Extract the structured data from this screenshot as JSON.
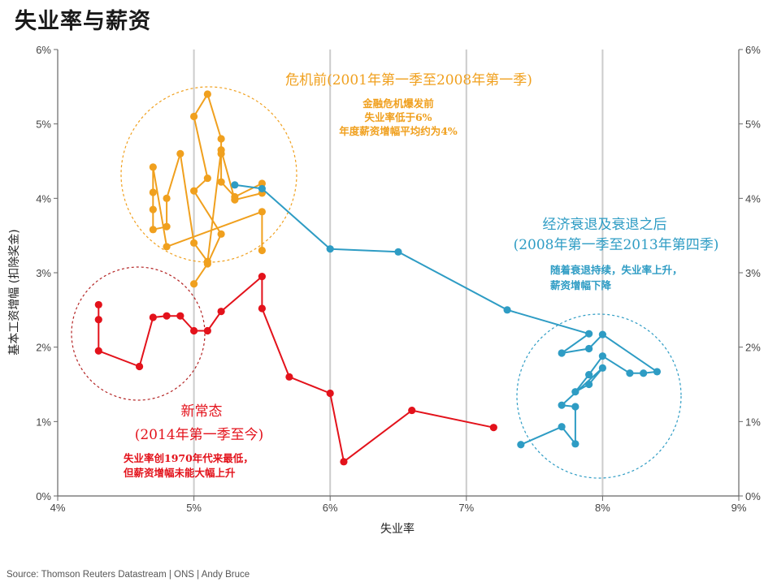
{
  "title": "失业率与薪资",
  "source": "Source: Thomson Reuters Datastream | ONS | Andy Bruce",
  "colors": {
    "orange": "#f0a01e",
    "blue": "#2e9cc4",
    "red": "#e3121b",
    "grid": "#cccccc",
    "axis": "#666666",
    "text": "#333333"
  },
  "chart_data": {
    "type": "scatter",
    "title": "失业率与薪资",
    "xlabel": "失业率",
    "ylabel": "基本工资增幅 (扣除奖金)",
    "xlim": [
      4,
      9
    ],
    "ylim": [
      0,
      6
    ],
    "x_ticks": [
      "4%",
      "5%",
      "6%",
      "7%",
      "8%",
      "9%"
    ],
    "y_ticks": [
      "0%",
      "1%",
      "2%",
      "3%",
      "4%",
      "5%",
      "6%"
    ],
    "grid": "vertical",
    "series": [
      {
        "key": "pre",
        "color": "#f0a01e",
        "points": [
          [
            5.0,
            2.85
          ],
          [
            5.1,
            3.12
          ],
          [
            5.2,
            3.52
          ],
          [
            5.0,
            4.1
          ],
          [
            5.1,
            4.27
          ],
          [
            5.0,
            5.1
          ],
          [
            5.1,
            5.4
          ],
          [
            5.2,
            4.8
          ],
          [
            5.2,
            4.6
          ],
          [
            5.2,
            4.22
          ],
          [
            5.3,
            4.02
          ],
          [
            5.5,
            4.2
          ],
          [
            5.5,
            4.07
          ],
          [
            5.3,
            3.98
          ],
          [
            5.2,
            4.65
          ],
          [
            5.1,
            3.15
          ],
          [
            5.0,
            3.4
          ],
          [
            4.9,
            4.6
          ],
          [
            4.8,
            4.0
          ],
          [
            4.8,
            3.62
          ],
          [
            4.7,
            3.58
          ],
          [
            4.7,
            3.85
          ],
          [
            4.7,
            4.08
          ],
          [
            4.7,
            4.42
          ],
          [
            4.8,
            3.35
          ],
          [
            5.5,
            3.82
          ],
          [
            5.5,
            3.3
          ]
        ]
      },
      {
        "key": "recession",
        "color": "#2e9cc4",
        "points": [
          [
            5.3,
            4.18
          ],
          [
            5.5,
            4.13
          ],
          [
            6.0,
            3.32
          ],
          [
            6.5,
            3.28
          ],
          [
            7.3,
            2.5
          ],
          [
            7.9,
            2.18
          ],
          [
            7.7,
            1.92
          ],
          [
            7.9,
            1.98
          ],
          [
            8.0,
            2.17
          ],
          [
            8.4,
            1.67
          ],
          [
            8.3,
            1.65
          ],
          [
            8.2,
            1.65
          ],
          [
            8.0,
            1.88
          ],
          [
            7.9,
            1.63
          ],
          [
            7.8,
            1.4
          ],
          [
            7.9,
            1.5
          ],
          [
            8.0,
            1.72
          ],
          [
            7.7,
            1.22
          ],
          [
            7.8,
            1.2
          ],
          [
            7.8,
            0.7
          ],
          [
            7.7,
            0.93
          ],
          [
            7.4,
            0.69
          ]
        ]
      },
      {
        "key": "new",
        "color": "#e3121b",
        "points": [
          [
            4.3,
            2.57
          ],
          [
            4.3,
            2.37
          ],
          [
            4.3,
            1.95
          ],
          [
            4.6,
            1.74
          ],
          [
            4.7,
            2.4
          ],
          [
            4.8,
            2.42
          ],
          [
            4.9,
            2.42
          ],
          [
            5.0,
            2.22
          ],
          [
            5.1,
            2.22
          ],
          [
            5.2,
            2.48
          ],
          [
            5.5,
            2.95
          ],
          [
            5.5,
            2.52
          ],
          [
            5.7,
            1.6
          ],
          [
            6.0,
            1.38
          ],
          [
            6.1,
            0.46
          ],
          [
            6.6,
            1.15
          ],
          [
            7.2,
            0.92
          ]
        ]
      }
    ],
    "annotations": {
      "pre_title": "危机前(2001年第一季至2008年第一季)",
      "pre_line1": "金融危机爆发前",
      "pre_line2": "失业率低于6%",
      "pre_line3": "年度薪资增幅平均约为4%",
      "rec_title1": "经济衰退及衰退之后",
      "rec_title2": "(2008年第一季至2013年第四季)",
      "rec_line1": "随着衰退持续，失业率上升，",
      "rec_line2": "薪资增幅下降",
      "new_title1": "新常态",
      "new_title2": "(2014年第一季至今)",
      "new_line1": "失业率创1970年代来最低，",
      "new_line2": "但薪资增幅未能大幅上升"
    }
  }
}
